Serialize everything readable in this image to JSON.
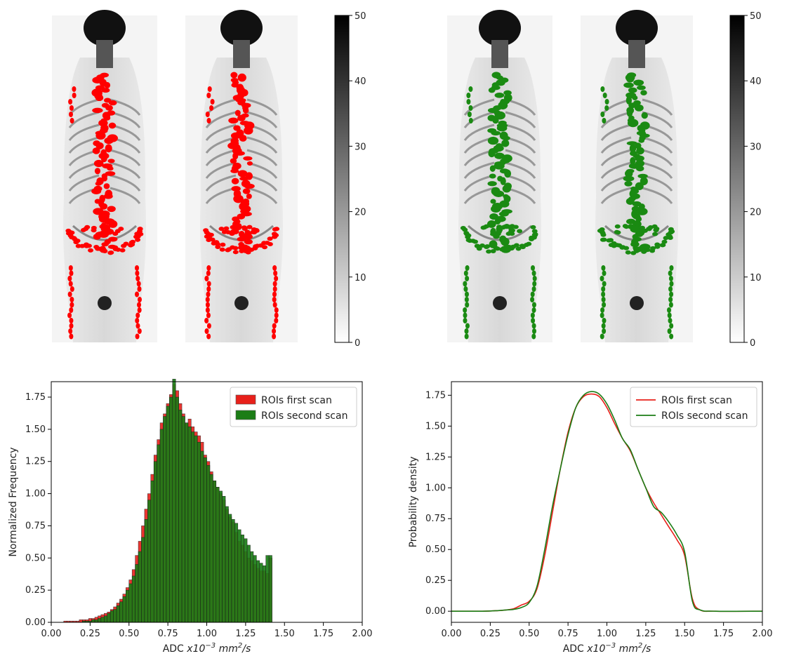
{
  "colors": {
    "first_scan": "#e8201a",
    "second_scan": "#1b7d16",
    "axis": "#000000"
  },
  "scans": [
    {
      "panel_label": "",
      "overlay_color": "#ff0000",
      "colorbar_ticks": [
        "0",
        "10",
        "20",
        "30",
        "40",
        "50"
      ]
    },
    {
      "panel_label": "",
      "overlay_color": "#1a8a12",
      "colorbar_ticks": [
        "0",
        "10",
        "20",
        "30",
        "40",
        "50"
      ]
    }
  ],
  "chart_data": [
    {
      "type": "histogram",
      "title": "",
      "xlabel_main": "ADC ",
      "xlabel_unit": "x10",
      "xlabel_exp": "−3",
      "xlabel_rest": " mm",
      "xlabel_rest_exp": "2",
      "xlabel_tail": "/s",
      "ylabel": "Normalized Frequency",
      "xlim": [
        0,
        2.0
      ],
      "ylim": [
        0,
        1.87
      ],
      "xticks": [
        "0.00",
        "0.25",
        "0.50",
        "0.75",
        "1.00",
        "1.25",
        "1.50",
        "1.75",
        "2.00"
      ],
      "yticks": [
        "0.00",
        "0.25",
        "0.50",
        "0.75",
        "1.00",
        "1.25",
        "1.50",
        "1.75"
      ],
      "legend_position": "top-right",
      "bin_start": 0.0,
      "bin_width": 0.02,
      "series": [
        {
          "name": "ROIs first scan",
          "color": "#e8201a",
          "values": [
            0,
            0,
            0,
            0,
            0.01,
            0.01,
            0.01,
            0.01,
            0.01,
            0.02,
            0.02,
            0.02,
            0.03,
            0.03,
            0.04,
            0.05,
            0.06,
            0.07,
            0.08,
            0.1,
            0.12,
            0.15,
            0.18,
            0.22,
            0.27,
            0.33,
            0.41,
            0.52,
            0.63,
            0.75,
            0.88,
            1.0,
            1.15,
            1.3,
            1.42,
            1.55,
            1.62,
            1.7,
            1.77,
            1.85,
            1.8,
            1.7,
            1.62,
            1.55,
            1.58,
            1.52,
            1.48,
            1.45,
            1.4,
            1.3,
            1.25,
            1.17,
            1.1,
            1.05,
            1.0,
            0.95,
            0.88,
            0.82,
            0.78,
            0.7,
            0.63,
            0.6,
            0.55,
            0.5,
            0.48,
            0.45,
            0.42,
            0.4,
            0.4,
            0.38,
            0.5,
            0,
            0,
            0,
            0,
            0,
            0,
            0,
            0,
            0,
            0,
            0,
            0,
            0,
            0,
            0,
            0,
            0,
            0,
            0,
            0,
            0,
            0,
            0,
            0,
            0,
            0,
            0,
            0,
            0
          ]
        },
        {
          "name": "ROIs second scan",
          "color": "#1b7d16",
          "values": [
            0,
            0,
            0,
            0,
            0,
            0,
            0,
            0,
            0,
            0,
            0.01,
            0.01,
            0.01,
            0.02,
            0.02,
            0.03,
            0.04,
            0.05,
            0.07,
            0.09,
            0.1,
            0.13,
            0.16,
            0.2,
            0.25,
            0.3,
            0.36,
            0.45,
            0.55,
            0.66,
            0.8,
            0.95,
            1.1,
            1.25,
            1.38,
            1.5,
            1.6,
            1.68,
            1.75,
            1.89,
            1.75,
            1.65,
            1.6,
            1.55,
            1.52,
            1.48,
            1.45,
            1.4,
            1.33,
            1.28,
            1.22,
            1.15,
            1.1,
            1.05,
            1.02,
            0.98,
            0.9,
            0.84,
            0.8,
            0.77,
            0.72,
            0.68,
            0.65,
            0.6,
            0.55,
            0.52,
            0.48,
            0.46,
            0.44,
            0.52,
            0.52,
            0,
            0,
            0,
            0,
            0,
            0,
            0,
            0,
            0,
            0,
            0,
            0,
            0,
            0,
            0,
            0,
            0,
            0,
            0,
            0,
            0,
            0,
            0,
            0,
            0,
            0,
            0,
            0,
            0
          ]
        }
      ]
    },
    {
      "type": "line",
      "title": "",
      "xlabel_main": "ADC ",
      "xlabel_unit": "x10",
      "xlabel_exp": "−3",
      "xlabel_rest": " mm",
      "xlabel_rest_exp": "2",
      "xlabel_tail": "/s",
      "ylabel": "Probability density",
      "xlim": [
        0,
        2.0
      ],
      "ylim": [
        -0.09,
        1.86
      ],
      "xticks": [
        "0.00",
        "0.25",
        "0.50",
        "0.75",
        "1.00",
        "1.25",
        "1.50",
        "1.75",
        "2.00"
      ],
      "yticks": [
        "0.00",
        "0.25",
        "0.50",
        "0.75",
        "1.00",
        "1.25",
        "1.50",
        "1.75"
      ],
      "legend_position": "top-right",
      "series": [
        {
          "name": "ROIs first scan",
          "color": "#e8201a",
          "x": [
            0,
            0.2,
            0.3,
            0.35,
            0.4,
            0.45,
            0.5,
            0.55,
            0.6,
            0.65,
            0.7,
            0.75,
            0.8,
            0.85,
            0.9,
            0.95,
            1.0,
            1.05,
            1.1,
            1.15,
            1.2,
            1.25,
            1.3,
            1.35,
            1.4,
            1.45,
            1.5,
            1.55,
            1.6,
            1.7,
            2.0
          ],
          "y": [
            0,
            0,
            0.005,
            0.01,
            0.02,
            0.05,
            0.08,
            0.18,
            0.45,
            0.8,
            1.15,
            1.45,
            1.65,
            1.74,
            1.76,
            1.74,
            1.65,
            1.52,
            1.4,
            1.3,
            1.15,
            1.0,
            0.88,
            0.78,
            0.68,
            0.58,
            0.45,
            0.1,
            0.01,
            0,
            0
          ]
        },
        {
          "name": "ROIs second scan",
          "color": "#1b7d16",
          "x": [
            0,
            0.2,
            0.3,
            0.35,
            0.4,
            0.45,
            0.5,
            0.55,
            0.6,
            0.65,
            0.7,
            0.75,
            0.8,
            0.85,
            0.9,
            0.95,
            1.0,
            1.05,
            1.1,
            1.15,
            1.2,
            1.25,
            1.3,
            1.35,
            1.4,
            1.45,
            1.5,
            1.55,
            1.6,
            1.7,
            2.0
          ],
          "y": [
            0,
            0,
            0.005,
            0.01,
            0.015,
            0.03,
            0.07,
            0.2,
            0.5,
            0.85,
            1.15,
            1.43,
            1.65,
            1.75,
            1.78,
            1.76,
            1.68,
            1.55,
            1.4,
            1.31,
            1.15,
            1.0,
            0.85,
            0.8,
            0.72,
            0.62,
            0.48,
            0.08,
            0.01,
            0,
            0
          ]
        }
      ]
    }
  ]
}
